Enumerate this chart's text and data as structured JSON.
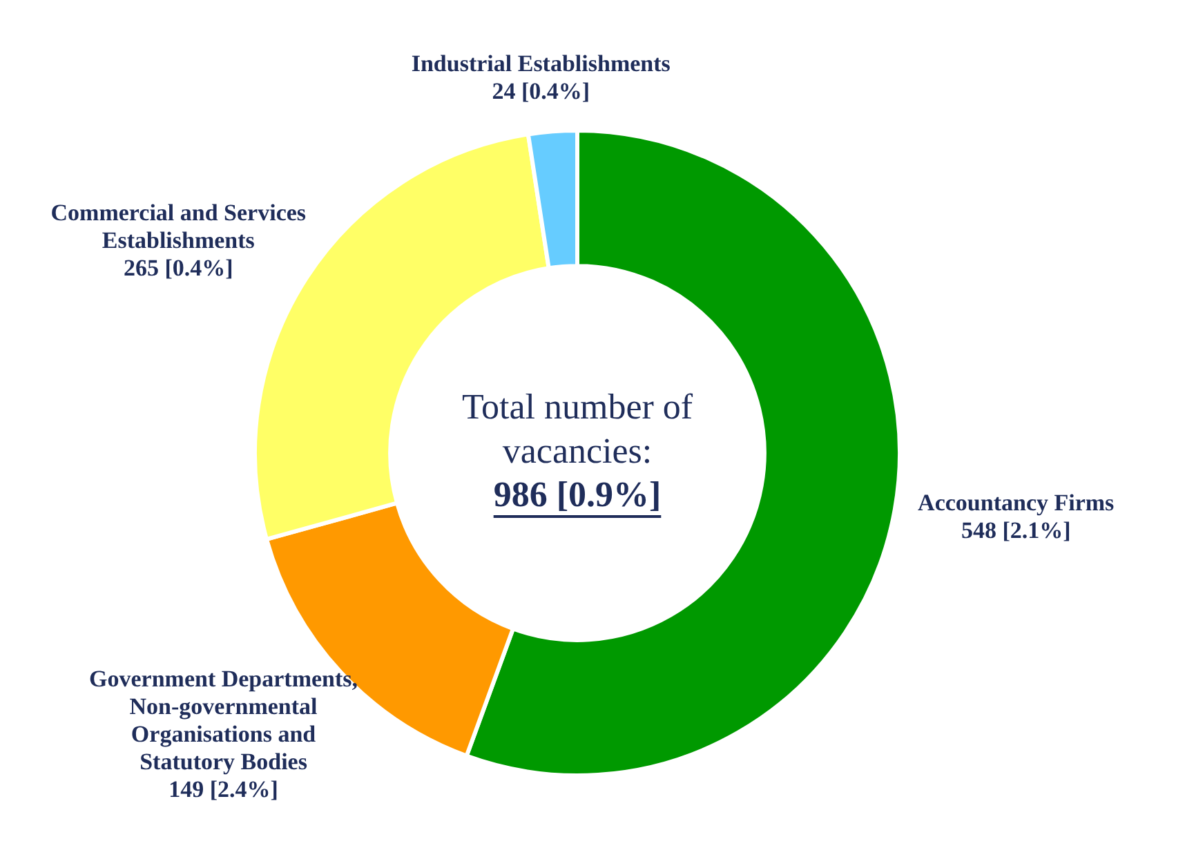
{
  "chart_data": {
    "type": "donut",
    "categories": [
      "Accountancy Firms",
      "Government Departments, Non-governmental Organisations and Statutory Bodies",
      "Commercial and Services Establishments",
      "Industrial Establishments"
    ],
    "values": [
      548,
      149,
      265,
      24
    ],
    "value_labels": [
      "548 [2.1%]",
      "149 [2.4%]",
      "265 [0.4%]",
      "24 [0.4%]"
    ],
    "colors": [
      "#009900",
      "#ff9900",
      "#ffff66",
      "#66ccff"
    ],
    "annotations": [
      "Total number of vacancies:",
      "986 [0.9%]"
    ],
    "legend": false
  }
}
